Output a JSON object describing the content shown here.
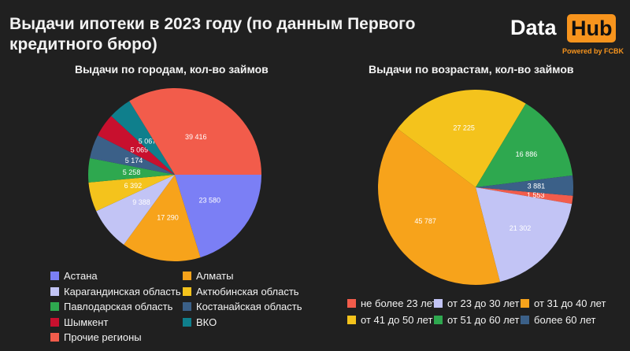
{
  "title": "Выдачи ипотеки в 2023 году (по данным Первого кредитного бюро)",
  "logo": {
    "part1": "Data",
    "part2": "Hub",
    "powered": "Powered by FCBK"
  },
  "chart_data": [
    {
      "type": "pie",
      "title": "Выдачи по городам, кол-во займов",
      "slices": [
        {
          "label": "Астана",
          "value": 23580,
          "display": "23 580",
          "color": "#7b7ff5"
        },
        {
          "label": "Алматы",
          "value": 17290,
          "display": "17 290",
          "color": "#f7a31b"
        },
        {
          "label": "Карагандинская область",
          "value": 9388,
          "display": "9 388",
          "color": "#c2c4f5"
        },
        {
          "label": "Актюбинская область",
          "value": 6392,
          "display": "6 392",
          "color": "#f4c31c"
        },
        {
          "label": "Павлодарская область",
          "value": 5258,
          "display": "5 258",
          "color": "#2ea84f"
        },
        {
          "label": "Костанайская область",
          "value": 5174,
          "display": "5 174",
          "color": "#3b6088"
        },
        {
          "label": "Шымкент",
          "value": 5069,
          "display": "5 069",
          "color": "#c8102e"
        },
        {
          "label": "ВКО",
          "value": 5067,
          "display": "5 067",
          "color": "#0f7f8c"
        },
        {
          "label": "Прочие регионы",
          "value": 39416,
          "display": "39 416",
          "color": "#f25c4b"
        }
      ]
    },
    {
      "type": "pie",
      "title": "Выдачи по возрастам, кол-во займов",
      "slices": [
        {
          "label": "не более 23 лет",
          "value": 1553,
          "display": "1 553",
          "color": "#f25c4b"
        },
        {
          "label": "от 23 до 30 лет",
          "value": 21302,
          "display": "21 302",
          "color": "#c2c4f5"
        },
        {
          "label": "от 31 до 40 лет",
          "value": 45787,
          "display": "45 787",
          "color": "#f7a31b"
        },
        {
          "label": "от 41 до 50 лет",
          "value": 27225,
          "display": "27 225",
          "color": "#f4c31c"
        },
        {
          "label": "от 51 до 60 лет",
          "value": 16886,
          "display": "16 886",
          "color": "#2ea84f"
        },
        {
          "label": "более 60 лет",
          "value": 3881,
          "display": "3 881",
          "color": "#3b6088"
        }
      ]
    }
  ]
}
